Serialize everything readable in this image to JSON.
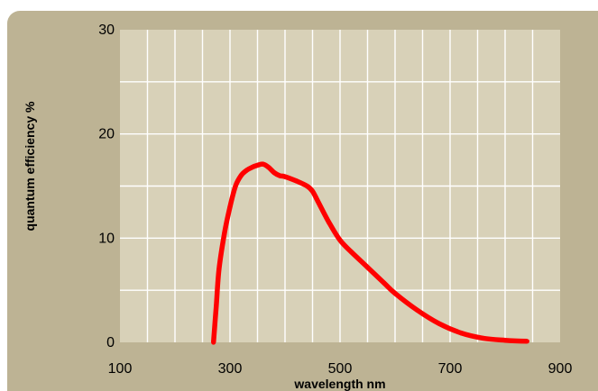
{
  "colors": {
    "frame": "#bdb394",
    "plot_area": "#d8d1b8",
    "grid": "#ffffff",
    "curve": "#ff0000"
  },
  "chart_data": {
    "type": "line",
    "title": "",
    "xlabel": "wavelength  nm",
    "ylabel": "quantum efficiency    %",
    "xlim": [
      100,
      900
    ],
    "ylim": [
      0,
      30
    ],
    "x_ticks": [
      100,
      300,
      500,
      700,
      900
    ],
    "y_ticks": [
      0,
      10,
      20,
      30
    ],
    "x_tick_labels": [
      "100",
      "300",
      "500",
      "700",
      "900"
    ],
    "y_tick_labels": [
      "0",
      "10",
      "20",
      "30"
    ],
    "grid": true,
    "legend": "none",
    "series": [
      {
        "x": [
          270,
          275,
          280,
          290,
          300,
          310,
          320,
          330,
          340,
          350,
          360,
          370,
          380,
          390,
          400,
          420,
          440,
          450,
          460,
          480,
          500,
          520,
          550,
          580,
          600,
          640,
          680,
          720,
          760,
          800,
          840
        ],
        "y": [
          0,
          3.5,
          7,
          10.5,
          13,
          15,
          16,
          16.5,
          16.8,
          17,
          17.1,
          16.8,
          16.3,
          16,
          15.9,
          15.5,
          15,
          14.5,
          13.5,
          11.5,
          9.8,
          8.7,
          7.2,
          5.7,
          4.7,
          3.1,
          1.8,
          0.9,
          0.4,
          0.2,
          0.1
        ]
      }
    ]
  }
}
